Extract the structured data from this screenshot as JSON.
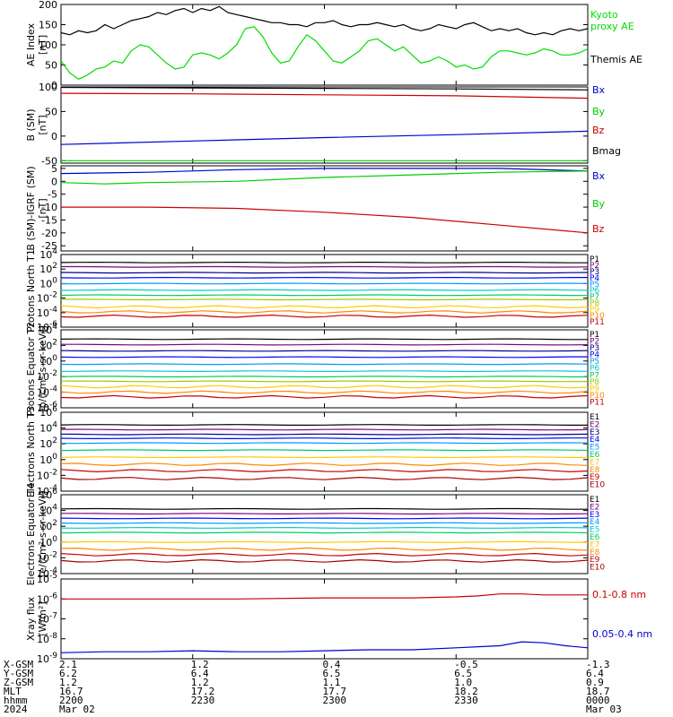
{
  "x_axis": {
    "rows": [
      {
        "label": "X-GSM",
        "values": [
          "2.1",
          "1.2",
          "0.4",
          "-0.5",
          "-1.3"
        ]
      },
      {
        "label": "Y-GSM",
        "values": [
          "6.2",
          "6.4",
          "6.5",
          "6.5",
          "6.4"
        ]
      },
      {
        "label": "Z-GSM",
        "values": [
          "1.2",
          "1.2",
          "1.1",
          "1.0",
          "0.9"
        ]
      },
      {
        "label": "MLT",
        "values": [
          "16.7",
          "17.2",
          "17.7",
          "18.2",
          "18.7"
        ]
      },
      {
        "label": "hhmm",
        "values": [
          "2200",
          "2230",
          "2300",
          "2330",
          "0000"
        ]
      },
      {
        "label": "2024",
        "values": [
          "Mar 02",
          "",
          "",
          "",
          "Mar 03"
        ]
      }
    ],
    "tick_minutes": [
      0,
      30,
      60,
      90,
      120
    ]
  },
  "chart_data": [
    {
      "id": "ae",
      "type": "line",
      "ylabel": "AE Index",
      "yunits": "[nT]",
      "ylim": [
        0,
        200
      ],
      "yticks": [
        "0",
        "50",
        "100",
        "150",
        "200"
      ],
      "ytick_values": [
        0,
        50,
        100,
        150,
        200
      ],
      "legend": [
        "Kyoto",
        "proxy AE",
        "Themis AE"
      ],
      "series": [
        {
          "name": "Kyoto proxy AE",
          "color": "#00dd00",
          "x": [
            0,
            2,
            4,
            6,
            8,
            10,
            12,
            14,
            16,
            18,
            20,
            22,
            24,
            26,
            28,
            30,
            32,
            34,
            36,
            38,
            40,
            42,
            44,
            46,
            48,
            50,
            52,
            54,
            56,
            58,
            60,
            62,
            64,
            66,
            68,
            70,
            72,
            74,
            76,
            78,
            80,
            82,
            84,
            86,
            88,
            90,
            92,
            94,
            96,
            98,
            100,
            102,
            104,
            106,
            108,
            110,
            112,
            114,
            116,
            118,
            120
          ],
          "y": [
            60,
            30,
            15,
            25,
            40,
            45,
            60,
            55,
            85,
            100,
            95,
            75,
            55,
            40,
            45,
            75,
            80,
            75,
            65,
            80,
            100,
            140,
            145,
            120,
            80,
            55,
            60,
            95,
            125,
            110,
            85,
            60,
            55,
            70,
            85,
            110,
            115,
            100,
            85,
            95,
            75,
            55,
            60,
            70,
            60,
            45,
            50,
            40,
            45,
            70,
            85,
            85,
            80,
            75,
            80,
            90,
            85,
            75,
            75,
            80,
            90
          ]
        },
        {
          "name": "Themis AE",
          "color": "#000000",
          "x": [
            0,
            2,
            4,
            6,
            8,
            10,
            12,
            14,
            16,
            18,
            20,
            22,
            24,
            26,
            28,
            30,
            32,
            34,
            36,
            38,
            40,
            42,
            44,
            46,
            48,
            50,
            52,
            54,
            56,
            58,
            60,
            62,
            64,
            66,
            68,
            70,
            72,
            74,
            76,
            78,
            80,
            82,
            84,
            86,
            88,
            90,
            92,
            94,
            96,
            98,
            100,
            102,
            104,
            106,
            108,
            110,
            112,
            114,
            116,
            118,
            120
          ],
          "y": [
            130,
            125,
            135,
            130,
            135,
            150,
            140,
            150,
            160,
            165,
            170,
            180,
            175,
            185,
            190,
            180,
            190,
            185,
            195,
            180,
            175,
            170,
            165,
            160,
            155,
            155,
            150,
            150,
            145,
            155,
            155,
            160,
            150,
            145,
            150,
            150,
            155,
            150,
            145,
            150,
            140,
            135,
            140,
            150,
            145,
            140,
            150,
            155,
            145,
            135,
            140,
            135,
            140,
            130,
            125,
            130,
            125,
            135,
            140,
            135,
            140
          ]
        }
      ]
    },
    {
      "id": "bsm",
      "type": "line",
      "ylabel": "B (SM)",
      "yunits": "[nT]",
      "ylim": [
        -55,
        100
      ],
      "yticks": [
        "-50",
        "0",
        "50",
        "100"
      ],
      "ytick_values": [
        -50,
        0,
        50,
        100
      ],
      "legend": [
        "Bx",
        "By",
        "Bz",
        "Bmag"
      ],
      "series": [
        {
          "name": "Bx",
          "color": "#0000cc",
          "x": [
            0,
            30,
            60,
            90,
            120
          ],
          "y": [
            -17,
            -10,
            -3,
            3,
            10
          ]
        },
        {
          "name": "By",
          "color": "#00cc00",
          "x": [
            0,
            30,
            60,
            90,
            120
          ],
          "y": [
            -50,
            -50,
            -50,
            -50,
            -50
          ]
        },
        {
          "name": "Bz",
          "color": "#cc0000",
          "x": [
            0,
            30,
            60,
            90,
            120
          ],
          "y": [
            87,
            86,
            84,
            82,
            77
          ]
        },
        {
          "name": "Bmag",
          "color": "#000000",
          "x": [
            0,
            30,
            60,
            90,
            120
          ],
          "y": [
            99,
            98,
            97,
            96,
            94
          ]
        }
      ]
    },
    {
      "id": "bigrf",
      "type": "line",
      "ylabel": "B (SM)-IGRF (SM)",
      "yunits": "[nT]",
      "ylim": [
        -27,
        6
      ],
      "yticks": [
        "5",
        "0",
        "-5",
        "-10",
        "-15",
        "-20",
        "-25"
      ],
      "ytick_values": [
        5,
        0,
        -5,
        -10,
        -15,
        -20,
        -25
      ],
      "legend": [
        "Bx",
        "By",
        "Bz"
      ],
      "series": [
        {
          "name": "Bx",
          "color": "#0000cc",
          "x": [
            0,
            20,
            40,
            60,
            80,
            100,
            120
          ],
          "y": [
            3,
            3.5,
            4.5,
            5,
            5,
            5,
            4
          ]
        },
        {
          "name": "By",
          "color": "#00cc00",
          "x": [
            0,
            10,
            20,
            40,
            60,
            80,
            100,
            120
          ],
          "y": [
            -0.5,
            -1,
            -0.5,
            0,
            1.5,
            2.5,
            3.5,
            4
          ]
        },
        {
          "name": "Bz",
          "color": "#cc0000",
          "x": [
            0,
            10,
            20,
            40,
            60,
            80,
            100,
            120
          ],
          "y": [
            -10,
            -10,
            -10,
            -10.5,
            -12,
            -14,
            -17,
            -20
          ]
        }
      ]
    },
    {
      "id": "p_north",
      "type": "line",
      "scale": "log",
      "ylabel": "Protons North T1",
      "yunits": "",
      "ylim_exp": [
        -6,
        4
      ],
      "yticks": [
        "4",
        "2",
        "0",
        "-2",
        "-4",
        "-6"
      ],
      "ytick_values": [
        4,
        2,
        0,
        -2,
        -4,
        -6
      ],
      "legend": [
        "P1",
        "P2",
        "P3",
        "P4",
        "P5",
        "P6",
        "P7",
        "P8",
        "P9",
        "P10",
        "P11"
      ],
      "series": [
        {
          "name": "P1",
          "color": "#000000",
          "log_y": 2.9
        },
        {
          "name": "P2",
          "color": "#800080",
          "log_y": 2.3
        },
        {
          "name": "P3",
          "color": "#000088",
          "log_y": 1.5
        },
        {
          "name": "P4",
          "color": "#0000ff",
          "log_y": 0.8
        },
        {
          "name": "P5",
          "color": "#0099ff",
          "log_y": 0.0
        },
        {
          "name": "P6",
          "color": "#00cccc",
          "log_y": -0.9
        },
        {
          "name": "P7",
          "color": "#00cc66",
          "log_y": -1.6
        },
        {
          "name": "P8",
          "color": "#99cc00",
          "log_y": -2.2
        },
        {
          "name": "P9",
          "color": "#ffcc00",
          "log_y": -3.2
        },
        {
          "name": "P10",
          "color": "#ff8800",
          "log_y": -3.9
        },
        {
          "name": "P11",
          "color": "#cc0000",
          "log_y": -4.5
        }
      ]
    },
    {
      "id": "p_equator",
      "type": "line",
      "scale": "log",
      "ylabel": "Protons Equator T2",
      "yunits": "[p/(cm²-s-sr-keV)]",
      "ylim_exp": [
        -6,
        4
      ],
      "yticks": [
        "4",
        "2",
        "0",
        "-2",
        "-4",
        "-6"
      ],
      "ytick_values": [
        4,
        2,
        0,
        -2,
        -4,
        -6
      ],
      "legend": [
        "P1",
        "P2",
        "P3",
        "P4",
        "P5",
        "P6",
        "P7",
        "P8",
        "P9",
        "P10",
        "P11"
      ],
      "series": [
        {
          "name": "P1",
          "color": "#000000",
          "log_y": 2.8
        },
        {
          "name": "P2",
          "color": "#800080",
          "log_y": 2.1
        },
        {
          "name": "P3",
          "color": "#000088",
          "log_y": 1.3
        },
        {
          "name": "P4",
          "color": "#0000ff",
          "log_y": 0.5
        },
        {
          "name": "P5",
          "color": "#0099ff",
          "log_y": -0.4
        },
        {
          "name": "P6",
          "color": "#00cccc",
          "log_y": -1.3
        },
        {
          "name": "P7",
          "color": "#00cc66",
          "log_y": -2.0
        },
        {
          "name": "P8",
          "color": "#99cc00",
          "log_y": -2.6
        },
        {
          "name": "P9",
          "color": "#ffcc00",
          "log_y": -3.3
        },
        {
          "name": "P10",
          "color": "#ff8800",
          "log_y": -4.0
        },
        {
          "name": "P11",
          "color": "#cc0000",
          "log_y": -4.6
        }
      ]
    },
    {
      "id": "e_north",
      "type": "line",
      "scale": "log",
      "ylabel": "Electrons North T3",
      "yunits": "",
      "ylim_exp": [
        -4,
        6
      ],
      "yticks": [
        "6",
        "4",
        "2",
        "0",
        "-2",
        "-4"
      ],
      "ytick_values": [
        6,
        4,
        2,
        0,
        -2,
        -4
      ],
      "legend": [
        "E1",
        "E2",
        "E3",
        "E4",
        "E5",
        "E6",
        "E7",
        "E8",
        "E9",
        "E10"
      ],
      "series": [
        {
          "name": "E1",
          "color": "#000000",
          "log_y": 4.4
        },
        {
          "name": "E2",
          "color": "#800080",
          "log_y": 3.8
        },
        {
          "name": "E3",
          "color": "#000088",
          "log_y": 3.2
        },
        {
          "name": "E4",
          "color": "#0000ff",
          "log_y": 2.7
        },
        {
          "name": "E5",
          "color": "#0099ff",
          "log_y": 2.1
        },
        {
          "name": "E6",
          "color": "#00cc66",
          "log_y": 1.2
        },
        {
          "name": "E7",
          "color": "#ffcc00",
          "log_y": 0.3
        },
        {
          "name": "E8",
          "color": "#ff8800",
          "log_y": -0.6
        },
        {
          "name": "E9",
          "color": "#cc0000",
          "log_y": -1.4
        },
        {
          "name": "E10",
          "color": "#aa0000",
          "log_y": -2.4
        }
      ]
    },
    {
      "id": "e_equator",
      "type": "line",
      "scale": "log",
      "ylabel": "Electrons Equator T4",
      "yunits": "[e/(cm²-s-sr-keV)]",
      "ylim_exp": [
        -4,
        6
      ],
      "yticks": [
        "6",
        "4",
        "2",
        "0",
        "-2",
        "-4"
      ],
      "ytick_values": [
        6,
        4,
        2,
        0,
        -2,
        -4
      ],
      "legend": [
        "E1",
        "E2",
        "E3",
        "E4",
        "E5",
        "E6",
        "E7",
        "E8",
        "E9",
        "E10"
      ],
      "series": [
        {
          "name": "E1",
          "color": "#000000",
          "log_y": 4.2
        },
        {
          "name": "E2",
          "color": "#800080",
          "log_y": 3.6
        },
        {
          "name": "E3",
          "color": "#0000ff",
          "log_y": 3.0
        },
        {
          "name": "E4",
          "color": "#0099ff",
          "log_y": 2.4
        },
        {
          "name": "E5",
          "color": "#00cccc",
          "log_y": 1.8
        },
        {
          "name": "E6",
          "color": "#00cc66",
          "log_y": 1.2
        },
        {
          "name": "E7",
          "color": "#ffcc00",
          "log_y": 0.0
        },
        {
          "name": "E8",
          "color": "#ff8800",
          "log_y": -0.9
        },
        {
          "name": "E9",
          "color": "#cc0000",
          "log_y": -1.6
        },
        {
          "name": "E10",
          "color": "#aa0000",
          "log_y": -2.4
        }
      ]
    },
    {
      "id": "xray",
      "type": "line",
      "scale": "log",
      "ylabel": "Xray flux",
      "yunits": "[W/m²]",
      "ylim_exp": [
        -9,
        -5
      ],
      "yticks": [
        "-5",
        "-6",
        "-7",
        "-8",
        "-9"
      ],
      "ytick_values": [
        -5,
        -6,
        -7,
        -8,
        -9
      ],
      "legend": [
        "0.1-0.8 nm",
        "0.05-0.4 nm"
      ],
      "series": [
        {
          "name": "0.1-0.8 nm",
          "color": "#cc0000",
          "x": [
            0,
            20,
            40,
            60,
            80,
            90,
            95,
            100,
            105,
            110,
            115,
            120
          ],
          "log_y": [
            -6.0,
            -6.0,
            -6.0,
            -5.95,
            -5.95,
            -5.9,
            -5.85,
            -5.75,
            -5.75,
            -5.8,
            -5.8,
            -5.8
          ]
        },
        {
          "name": "0.05-0.4 nm",
          "color": "#0000cc",
          "x": [
            0,
            10,
            20,
            30,
            40,
            50,
            60,
            70,
            80,
            90,
            95,
            100,
            105,
            110,
            115,
            120
          ],
          "log_y": [
            -8.7,
            -8.65,
            -8.65,
            -8.6,
            -8.65,
            -8.65,
            -8.6,
            -8.55,
            -8.55,
            -8.45,
            -8.4,
            -8.35,
            -8.15,
            -8.2,
            -8.35,
            -8.45
          ]
        }
      ]
    }
  ]
}
